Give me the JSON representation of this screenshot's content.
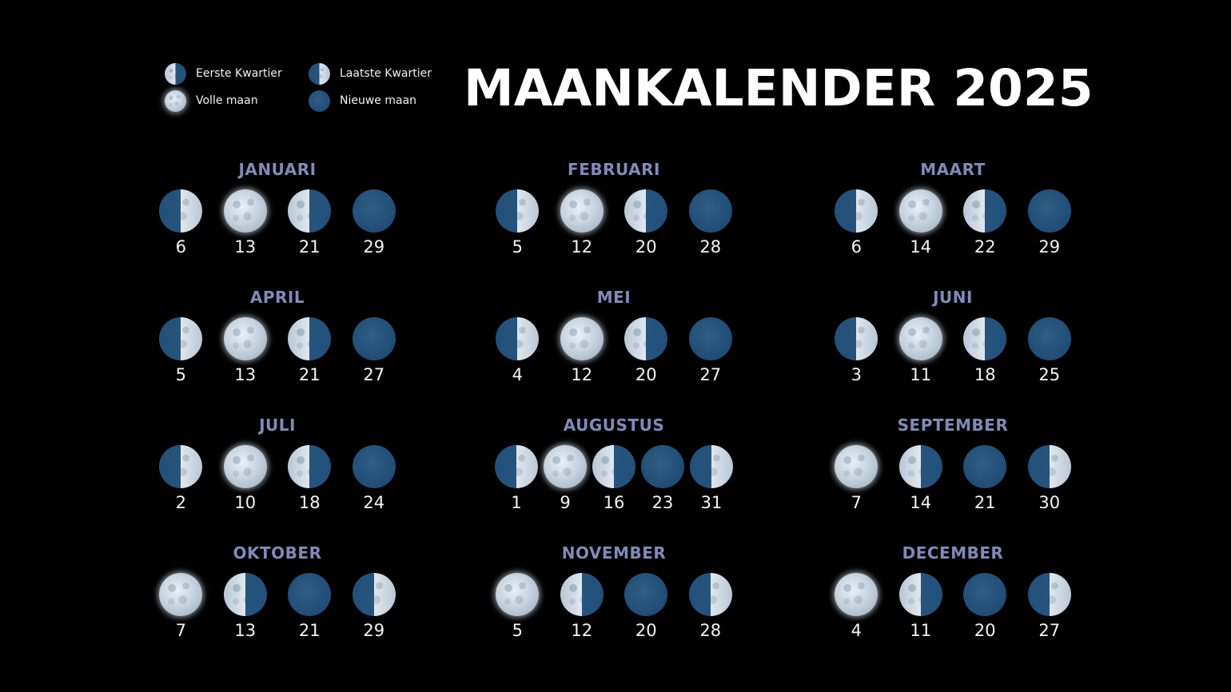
{
  "title": "MAANKALENDER 2025",
  "legend": {
    "items": [
      {
        "label": "Eerste Kwartier",
        "icon": "first-quarter-moon-icon",
        "phase": "first"
      },
      {
        "label": "Laatste Kwartier",
        "icon": "last-quarter-moon-icon",
        "phase": "last"
      },
      {
        "label": "Volle maan",
        "icon": "full-moon-icon",
        "phase": "full"
      },
      {
        "label": "Nieuwe maan",
        "icon": "new-moon-icon",
        "phase": "new"
      }
    ]
  },
  "colors": {
    "background": "#000000",
    "month_heading": "#7f8bb8",
    "title": "#ffffff",
    "date_text": "#f4f4f4",
    "moon_dark": "#22507a",
    "moon_light": "#dfe8f0"
  },
  "months": [
    {
      "name": "JANUARI",
      "phases": [
        {
          "date": "6",
          "phase": "first"
        },
        {
          "date": "13",
          "phase": "full"
        },
        {
          "date": "21",
          "phase": "last"
        },
        {
          "date": "29",
          "phase": "new"
        }
      ]
    },
    {
      "name": "FEBRUARI",
      "phases": [
        {
          "date": "5",
          "phase": "first"
        },
        {
          "date": "12",
          "phase": "full"
        },
        {
          "date": "20",
          "phase": "last"
        },
        {
          "date": "28",
          "phase": "new"
        }
      ]
    },
    {
      "name": "MAART",
      "phases": [
        {
          "date": "6",
          "phase": "first"
        },
        {
          "date": "14",
          "phase": "full"
        },
        {
          "date": "22",
          "phase": "last"
        },
        {
          "date": "29",
          "phase": "new"
        }
      ]
    },
    {
      "name": "APRIL",
      "phases": [
        {
          "date": "5",
          "phase": "first"
        },
        {
          "date": "13",
          "phase": "full"
        },
        {
          "date": "21",
          "phase": "last"
        },
        {
          "date": "27",
          "phase": "new"
        }
      ]
    },
    {
      "name": "MEI",
      "phases": [
        {
          "date": "4",
          "phase": "first"
        },
        {
          "date": "12",
          "phase": "full"
        },
        {
          "date": "20",
          "phase": "last"
        },
        {
          "date": "27",
          "phase": "new"
        }
      ]
    },
    {
      "name": "JUNI",
      "phases": [
        {
          "date": "3",
          "phase": "first"
        },
        {
          "date": "11",
          "phase": "full"
        },
        {
          "date": "18",
          "phase": "last"
        },
        {
          "date": "25",
          "phase": "new"
        }
      ]
    },
    {
      "name": "JULI",
      "phases": [
        {
          "date": "2",
          "phase": "first"
        },
        {
          "date": "10",
          "phase": "full"
        },
        {
          "date": "18",
          "phase": "last"
        },
        {
          "date": "24",
          "phase": "new"
        }
      ]
    },
    {
      "name": "AUGUSTUS",
      "phases": [
        {
          "date": "1",
          "phase": "first"
        },
        {
          "date": "9",
          "phase": "full"
        },
        {
          "date": "16",
          "phase": "last"
        },
        {
          "date": "23",
          "phase": "new"
        },
        {
          "date": "31",
          "phase": "first"
        }
      ]
    },
    {
      "name": "SEPTEMBER",
      "phases": [
        {
          "date": "7",
          "phase": "full"
        },
        {
          "date": "14",
          "phase": "last"
        },
        {
          "date": "21",
          "phase": "new"
        },
        {
          "date": "30",
          "phase": "first"
        }
      ]
    },
    {
      "name": "OKTOBER",
      "phases": [
        {
          "date": "7",
          "phase": "full"
        },
        {
          "date": "13",
          "phase": "last"
        },
        {
          "date": "21",
          "phase": "new"
        },
        {
          "date": "29",
          "phase": "first"
        }
      ]
    },
    {
      "name": "NOVEMBER",
      "phases": [
        {
          "date": "5",
          "phase": "full"
        },
        {
          "date": "12",
          "phase": "last"
        },
        {
          "date": "20",
          "phase": "new"
        },
        {
          "date": "28",
          "phase": "first"
        }
      ]
    },
    {
      "name": "DECEMBER",
      "phases": [
        {
          "date": "4",
          "phase": "full"
        },
        {
          "date": "11",
          "phase": "last"
        },
        {
          "date": "20",
          "phase": "new"
        },
        {
          "date": "27",
          "phase": "first"
        }
      ]
    }
  ]
}
